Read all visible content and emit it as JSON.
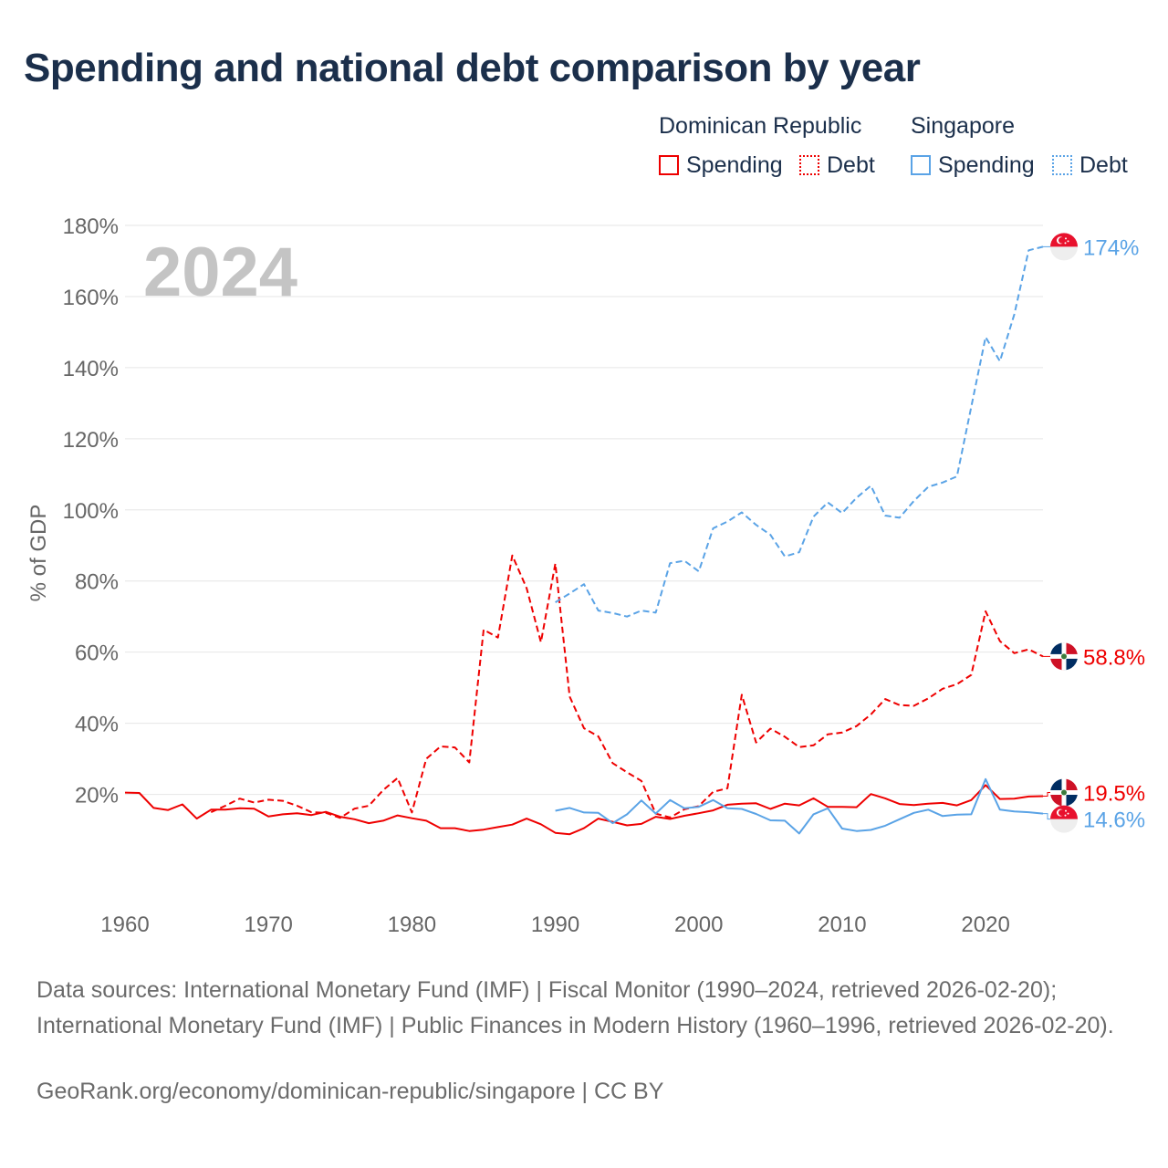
{
  "title": "Spending and national debt comparison by year",
  "legend": {
    "dr_title": "Dominican Republic",
    "sg_title": "Singapore",
    "spending": "Spending",
    "debt": "Debt"
  },
  "colors": {
    "dr": "#ee0000",
    "sg": "#5aa3e6",
    "grid": "#e6e6e6",
    "axis_text": "#666666",
    "year_text": "#c4c4c4"
  },
  "sources": "Data sources: International Monetary Fund (IMF) | Fiscal Monitor (1990–2024, retrieved 2026-02-20); International Monetary Fund (IMF) | Public Finances in Modern History (1960–1996, retrieved 2026-02-20).",
  "credit": "GeoRank.org/economy/dominican-republic/singapore | CC BY",
  "chart_data": {
    "type": "line",
    "title": "Spending and national debt comparison by year",
    "year_label": "2024",
    "ylabel": "% of GDP",
    "xlabel": "",
    "xlim": [
      1960,
      2024
    ],
    "ylim": [
      -5,
      180
    ],
    "xticks": [
      1960,
      1970,
      1980,
      1990,
      2000,
      2010,
      2020
    ],
    "yticks": [
      20,
      40,
      60,
      80,
      100,
      120,
      140,
      160,
      180
    ],
    "ytick_labels": [
      "20%",
      "40%",
      "60%",
      "80%",
      "100%",
      "120%",
      "140%",
      "160%",
      "180%"
    ],
    "grid": true,
    "legend_position": "top-right",
    "series": [
      {
        "name": "Dominican Republic Spending",
        "country": "dr",
        "style": "solid",
        "end_label": "19.5%",
        "end_value": 19.5,
        "x": [
          1960,
          1961,
          1962,
          1963,
          1964,
          1965,
          1966,
          1967,
          1968,
          1969,
          1970,
          1971,
          1972,
          1973,
          1974,
          1975,
          1976,
          1977,
          1978,
          1979,
          1980,
          1981,
          1982,
          1983,
          1984,
          1985,
          1986,
          1987,
          1988,
          1989,
          1990,
          1991,
          1992,
          1993,
          1994,
          1995,
          1996,
          1997,
          1998,
          1999,
          2000,
          2001,
          2002,
          2003,
          2004,
          2005,
          2006,
          2007,
          2008,
          2009,
          2010,
          2011,
          2012,
          2013,
          2014,
          2015,
          2016,
          2017,
          2018,
          2019,
          2020,
          2021,
          2022,
          2023,
          2024
        ],
        "y": [
          20.5,
          20.4,
          16.2,
          15.6,
          17.2,
          13.2,
          15.7,
          15.7,
          16.1,
          16.0,
          13.8,
          14.4,
          14.7,
          14.2,
          15.1,
          13.7,
          13.0,
          11.9,
          12.6,
          14.1,
          13.3,
          12.6,
          10.5,
          10.5,
          9.7,
          10.1,
          10.8,
          11.5,
          13.2,
          11.6,
          9.2,
          8.8,
          10.5,
          13.2,
          12.3,
          11.3,
          11.7,
          13.7,
          13.1,
          14.0,
          14.7,
          15.5,
          17.1,
          17.4,
          17.5,
          15.9,
          17.4,
          16.9,
          18.9,
          16.5,
          16.5,
          16.4,
          20.1,
          18.9,
          17.3,
          17.0,
          17.4,
          17.6,
          16.9,
          18.4,
          22.6,
          18.7,
          18.8,
          19.4,
          19.5
        ]
      },
      {
        "name": "Dominican Republic Debt",
        "country": "dr",
        "style": "dashed",
        "end_label": "58.8%",
        "end_value": 58.8,
        "x": [
          1966,
          1967,
          1968,
          1969,
          1970,
          1971,
          1972,
          1973,
          1974,
          1975,
          1976,
          1977,
          1978,
          1979,
          1980,
          1981,
          1982,
          1983,
          1984,
          1985,
          1986,
          1987,
          1988,
          1989,
          1990,
          1991,
          1992,
          1993,
          1994,
          1995,
          1996,
          1997,
          1998,
          1999,
          2000,
          2001,
          2002,
          2003,
          2004,
          2005,
          2006,
          2007,
          2008,
          2009,
          2010,
          2011,
          2012,
          2013,
          2014,
          2015,
          2016,
          2017,
          2018,
          2019,
          2020,
          2021,
          2022,
          2023,
          2024
        ],
        "y": [
          15.0,
          16.8,
          18.8,
          17.7,
          18.5,
          18.2,
          16.8,
          15.0,
          14.8,
          13.4,
          16.0,
          16.8,
          21.2,
          24.6,
          14.9,
          30.0,
          33.5,
          33.2,
          29.0,
          66.3,
          64.1,
          87.2,
          78.0,
          62.8,
          84.9,
          47.5,
          38.6,
          36.3,
          28.8,
          26.2,
          23.8,
          14.6,
          13.5,
          15.8,
          16.7,
          20.7,
          21.7,
          48.0,
          34.6,
          38.5,
          36.2,
          33.3,
          33.8,
          36.9,
          37.4,
          39.2,
          42.5,
          46.8,
          45.1,
          44.9,
          47.0,
          49.7,
          51.0,
          53.6,
          71.5,
          63.1,
          59.7,
          60.8,
          58.8
        ]
      },
      {
        "name": "Singapore Spending",
        "country": "sg",
        "style": "solid",
        "end_label": "14.6%",
        "end_value": 14.6,
        "x": [
          1990,
          1991,
          1992,
          1993,
          1994,
          1995,
          1996,
          1997,
          1998,
          1999,
          2000,
          2001,
          2002,
          2003,
          2004,
          2005,
          2006,
          2007,
          2008,
          2009,
          2010,
          2011,
          2012,
          2013,
          2014,
          2015,
          2016,
          2017,
          2018,
          2019,
          2020,
          2021,
          2022,
          2023,
          2024
        ],
        "y": [
          15.4,
          16.2,
          14.9,
          14.8,
          11.9,
          14.4,
          18.3,
          14.6,
          18.4,
          16.1,
          16.5,
          18.4,
          16.1,
          15.9,
          14.5,
          12.7,
          12.6,
          9.0,
          14.4,
          16.1,
          10.4,
          9.7,
          10.0,
          11.2,
          13.0,
          14.8,
          15.7,
          13.9,
          14.3,
          14.4,
          24.3,
          15.7,
          15.2,
          15.0,
          14.6
        ]
      },
      {
        "name": "Singapore Debt",
        "country": "sg",
        "style": "dashed",
        "end_label": "174%",
        "end_value": 174,
        "x": [
          1990,
          1991,
          1992,
          1993,
          1994,
          1995,
          1996,
          1997,
          1998,
          1999,
          2000,
          2001,
          2002,
          2003,
          2004,
          2005,
          2006,
          2007,
          2008,
          2009,
          2010,
          2011,
          2012,
          2013,
          2014,
          2015,
          2016,
          2017,
          2018,
          2019,
          2020,
          2021,
          2022,
          2023,
          2024
        ],
        "y": [
          74.0,
          76.5,
          79.1,
          71.7,
          71.0,
          70.0,
          71.7,
          71.1,
          85.0,
          85.7,
          82.7,
          94.8,
          96.7,
          99.3,
          95.8,
          93.0,
          86.9,
          88.1,
          98.1,
          102.1,
          99.1,
          103.4,
          106.8,
          98.4,
          97.8,
          102.5,
          106.5,
          107.7,
          109.4,
          129.0,
          148.6,
          141.8,
          155.0,
          173.0,
          174.0
        ]
      }
    ]
  }
}
